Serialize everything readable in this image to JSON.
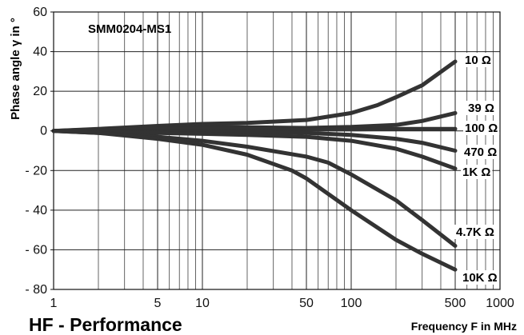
{
  "chart_data": {
    "type": "line",
    "title": "HF - Performance",
    "model": "SMM0204-MS1",
    "xlabel": "Frequency F in MHz",
    "ylabel": "Phase angle γ in °",
    "xscale": "log",
    "xlim": [
      1,
      1000
    ],
    "ylim": [
      -80,
      60
    ],
    "xticks": [
      1,
      5,
      10,
      50,
      100,
      500,
      1000
    ],
    "xtick_labels": [
      "1",
      "5",
      "10",
      "50",
      "100",
      "500",
      "1000"
    ],
    "yticks": [
      -80,
      -60,
      -40,
      -20,
      0,
      20,
      40,
      60
    ],
    "ytick_labels": [
      "- 80",
      "- 60",
      "- 40",
      "- 20",
      "0",
      "20",
      "40",
      "60"
    ],
    "grid": true,
    "series": [
      {
        "name": "10 Ω",
        "x": [
          1,
          2,
          5,
          10,
          20,
          50,
          100,
          150,
          200,
          300,
          500
        ],
        "y": [
          0,
          1,
          2.5,
          3.5,
          4,
          5.5,
          9,
          13,
          17,
          23,
          35
        ]
      },
      {
        "name": "39 Ω",
        "x": [
          1,
          2,
          5,
          10,
          20,
          50,
          100,
          200,
          300,
          500
        ],
        "y": [
          0,
          0.8,
          1.8,
          2,
          1.8,
          1.5,
          2,
          3,
          5,
          9
        ]
      },
      {
        "name": "100 Ω",
        "x": [
          1,
          2,
          5,
          10,
          20,
          50,
          100,
          200,
          300,
          500
        ],
        "y": [
          0,
          0.5,
          1,
          1,
          1,
          0.8,
          0.8,
          1,
          1,
          1
        ]
      },
      {
        "name": "470 Ω",
        "x": [
          1,
          2,
          5,
          10,
          20,
          50,
          100,
          200,
          300,
          500
        ],
        "y": [
          0,
          0,
          0,
          0,
          -0.5,
          -1,
          -2,
          -4,
          -6,
          -10
        ]
      },
      {
        "name": "1K Ω",
        "x": [
          1,
          2,
          5,
          10,
          20,
          50,
          100,
          200,
          300,
          500
        ],
        "y": [
          0,
          -0.5,
          -1,
          -1.5,
          -2,
          -3,
          -5,
          -9,
          -13,
          -19
        ]
      },
      {
        "name": "4.7K Ω",
        "x": [
          1,
          2,
          5,
          10,
          20,
          50,
          70,
          100,
          200,
          300,
          500
        ],
        "y": [
          0,
          -1,
          -3,
          -5,
          -8,
          -13,
          -16,
          -22,
          -35,
          -45,
          -58
        ]
      },
      {
        "name": "10K Ω",
        "x": [
          1,
          2,
          5,
          10,
          20,
          40,
          50,
          100,
          200,
          300,
          500
        ],
        "y": [
          0,
          -1,
          -4,
          -7,
          -12,
          -20,
          -24,
          -40,
          -55,
          -62,
          -70
        ]
      }
    ],
    "line_color": "#333333",
    "grid_color": "#222222"
  }
}
